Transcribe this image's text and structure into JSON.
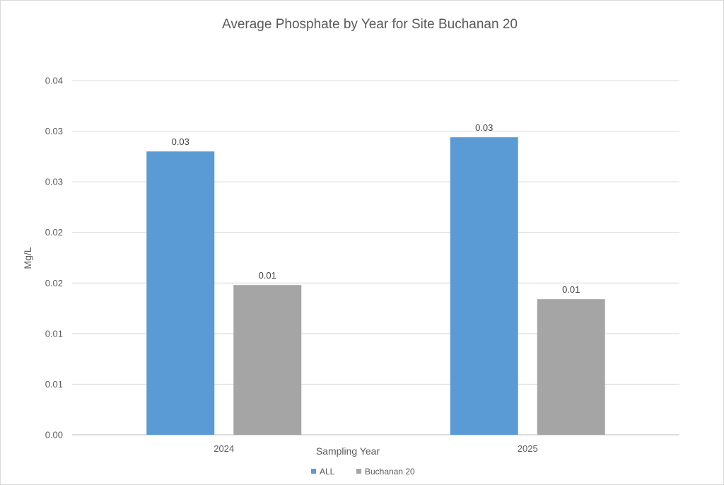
{
  "chart_data": {
    "type": "bar",
    "title": "Average Phosphate by Year for Site Buchanan 20",
    "xlabel": "Sampling Year",
    "ylabel": "Mg/L",
    "categories": [
      "2024",
      "2025"
    ],
    "ytick_labels": [
      "0.00",
      "0.01",
      "0.01",
      "0.02",
      "0.02",
      "0.03",
      "0.03",
      "0.04"
    ],
    "ytick_values": [
      0,
      0.005,
      0.01,
      0.015,
      0.02,
      0.025,
      0.03,
      0.035
    ],
    "ylim": [
      0,
      0.035
    ],
    "grid": true,
    "legend_position": "bottom",
    "series": [
      {
        "name": "ALL",
        "color": "#5b9bd5",
        "values": [
          0.028,
          0.0294
        ],
        "labels": [
          "0.03",
          "0.03"
        ]
      },
      {
        "name": "Buchanan 20",
        "color": "#a5a5a5",
        "values": [
          0.0148,
          0.0134
        ],
        "labels": [
          "0.01",
          "0.01"
        ]
      }
    ]
  }
}
